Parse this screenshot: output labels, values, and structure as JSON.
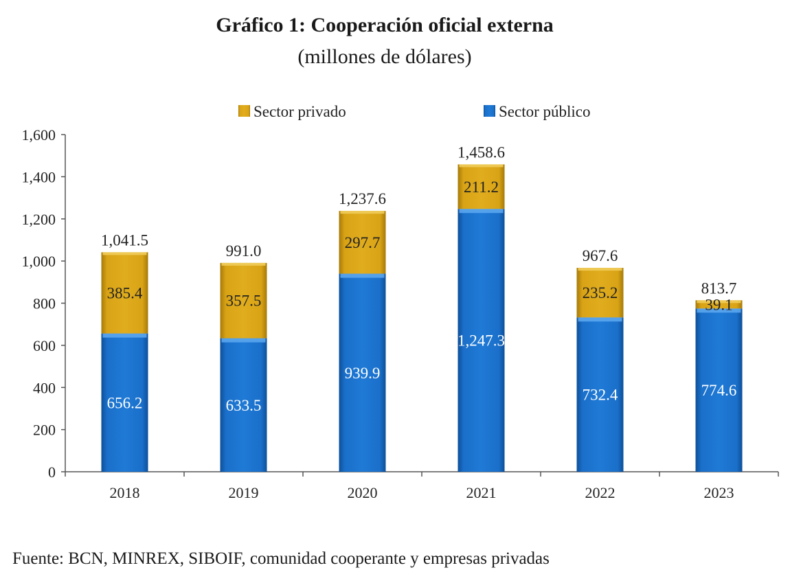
{
  "chart_data": {
    "type": "bar",
    "stacked": true,
    "title": "Gráfico 1: Cooperación oficial externa",
    "subtitle": "(millones de dólares)",
    "categories": [
      "2018",
      "2019",
      "2020",
      "2021",
      "2022",
      "2023"
    ],
    "series": [
      {
        "name": "Sector público",
        "values": [
          656.2,
          633.5,
          939.9,
          1247.3,
          732.4,
          774.6
        ],
        "color": "#1a6fc9"
      },
      {
        "name": "Sector privado",
        "values": [
          385.4,
          357.5,
          297.7,
          211.2,
          235.2,
          39.1
        ],
        "color": "#d9a316"
      }
    ],
    "totals": [
      1041.5,
      991.0,
      1237.6,
      1458.6,
      967.6,
      813.7
    ],
    "value_labels": {
      "Sector público": [
        "656.2",
        "633.5",
        "939.9",
        "1,247.3",
        "732.4",
        "774.6"
      ],
      "Sector privado": [
        "385.4",
        "357.5",
        "297.7",
        "211.2",
        "235.2",
        "39.1"
      ],
      "totals": [
        "1,041.5",
        "991.0",
        "1,237.6",
        "1,458.6",
        "967.6",
        "813.7"
      ]
    },
    "y_ticks": [
      0,
      200,
      400,
      600,
      800,
      1000,
      1200,
      1400,
      1600
    ],
    "y_tick_labels": [
      "0",
      "200",
      "400",
      "600",
      "800",
      "1,000",
      "1,200",
      "1,400",
      "1,600"
    ],
    "ylim": [
      0,
      1600
    ],
    "legend": {
      "position": "top",
      "order": [
        "Sector privado",
        "Sector público"
      ]
    },
    "grid": false
  },
  "source": "Fuente: BCN, MINREX, SIBOIF, comunidad cooperante y empresas privadas"
}
